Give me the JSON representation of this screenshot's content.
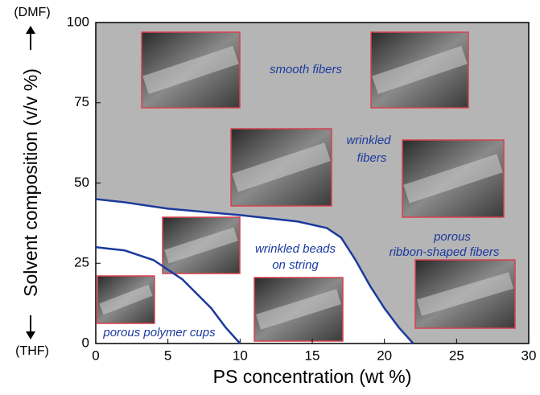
{
  "chart_data": {
    "type": "line",
    "xlabel": "PS concentration (wt %)",
    "ylabel": "Solvent composition (v/v %)",
    "ylabel_top": "(DMF)",
    "ylabel_bottom": "(THF)",
    "xlim": [
      0,
      30
    ],
    "ylim": [
      0,
      100
    ],
    "xticks": [
      0,
      5,
      10,
      15,
      20,
      25,
      30
    ],
    "yticks": [
      0,
      25,
      50,
      75,
      100
    ],
    "series": [
      {
        "color": "#1c3a9e",
        "x": [
          0,
          2,
          5,
          10,
          14,
          16,
          17,
          18,
          19,
          20,
          21,
          22
        ],
        "values": [
          45,
          44,
          42,
          40,
          38,
          36,
          33,
          26,
          18,
          11,
          5,
          0
        ]
      },
      {
        "color": "#1c3a9e",
        "x": [
          0,
          2,
          4,
          6,
          8,
          9,
          10
        ],
        "values": [
          30,
          29,
          26,
          20,
          11,
          5,
          0
        ]
      }
    ],
    "annotations": [
      {
        "lines": [
          "smooth fibers"
        ]
      },
      {
        "lines": [
          "wrinkled",
          "fibers"
        ]
      },
      {
        "lines": [
          "porous",
          "ribbon-shaped fibers"
        ]
      },
      {
        "lines": [
          "wrinkled beads",
          "on string"
        ]
      },
      {
        "lines": [
          "porous polymer cups"
        ]
      }
    ]
  }
}
